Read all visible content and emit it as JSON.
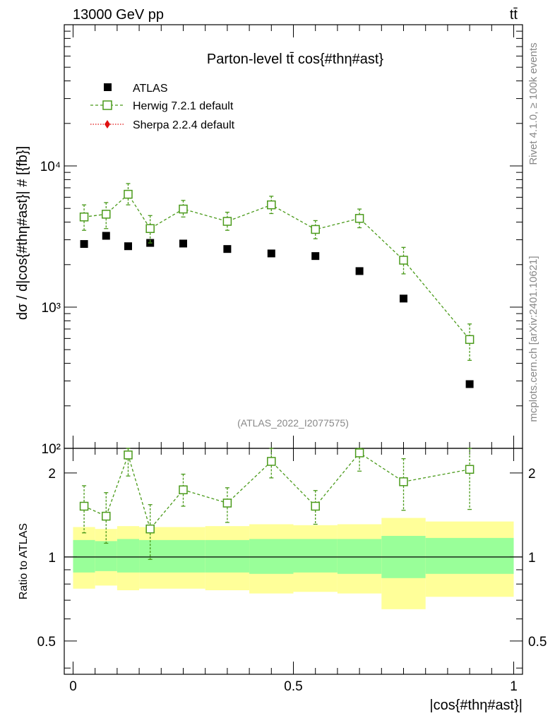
{
  "header": {
    "energy": "13000 GeV pp",
    "process": "tt̄"
  },
  "side": {
    "rivet": "Rivet 4.1.0, ≥ 100k events",
    "mcplots": "mcplots.cern.ch [arXiv:2401.10621]"
  },
  "chart_data": [
    {
      "type": "scatter",
      "title": "Parton-level tt̄ cos{#thη#ast}",
      "ylabel": "dσ / d|cos{#thη#ast}| # [{fb}]",
      "xlabel": "|cos{#thη#ast}|",
      "yscale": "log",
      "ylim": [
        100,
        100000
      ],
      "xlim": [
        -0.02,
        1.02
      ],
      "y_ticks": [
        {
          "value": 100,
          "label": "10²"
        },
        {
          "value": 1000,
          "label": "10³"
        },
        {
          "value": 10000,
          "label": "10⁴"
        }
      ],
      "watermark": "(ATLAS_2022_I2077575)",
      "legend_position": "top-left",
      "series": [
        {
          "name": "ATLAS",
          "color": "#000000",
          "marker": "filled-square",
          "points": [
            {
              "x": 0.025,
              "y": 2800
            },
            {
              "x": 0.075,
              "y": 3200
            },
            {
              "x": 0.125,
              "y": 2700
            },
            {
              "x": 0.175,
              "y": 2850
            },
            {
              "x": 0.25,
              "y": 2820
            },
            {
              "x": 0.35,
              "y": 2580
            },
            {
              "x": 0.45,
              "y": 2400
            },
            {
              "x": 0.55,
              "y": 2300
            },
            {
              "x": 0.65,
              "y": 1800
            },
            {
              "x": 0.75,
              "y": 1150
            },
            {
              "x": 0.9,
              "y": 285
            }
          ]
        },
        {
          "name": "Herwig 7.2.1 default",
          "color": "#4a9a1a",
          "marker": "open-square",
          "points": [
            {
              "x": 0.025,
              "y": 4350,
              "lo": 3500,
              "hi": 5300
            },
            {
              "x": 0.075,
              "y": 4550,
              "lo": 3600,
              "hi": 5500
            },
            {
              "x": 0.125,
              "y": 6300,
              "lo": 5300,
              "hi": 7500
            },
            {
              "x": 0.175,
              "y": 3600,
              "lo": 2850,
              "hi": 4450
            },
            {
              "x": 0.25,
              "y": 4950,
              "lo": 4350,
              "hi": 5700
            },
            {
              "x": 0.35,
              "y": 4050,
              "lo": 3500,
              "hi": 4700
            },
            {
              "x": 0.45,
              "y": 5300,
              "lo": 4600,
              "hi": 6100
            },
            {
              "x": 0.55,
              "y": 3550,
              "lo": 3050,
              "hi": 4100
            },
            {
              "x": 0.65,
              "y": 4250,
              "lo": 3650,
              "hi": 4950
            },
            {
              "x": 0.75,
              "y": 2150,
              "lo": 1720,
              "hi": 2650
            },
            {
              "x": 0.9,
              "y": 590,
              "lo": 420,
              "hi": 760
            }
          ]
        },
        {
          "name": "Sherpa 2.2.4 default",
          "color": "#e01010",
          "marker": "diamond",
          "points": []
        }
      ]
    },
    {
      "type": "scatter",
      "ylabel": "Ratio to ATLAS",
      "xlabel": "|cos{#thη#ast}|",
      "yscale": "log",
      "ylim": [
        0.38,
        2.45
      ],
      "xlim": [
        -0.02,
        1.02
      ],
      "y_ticks": [
        {
          "value": 0.5,
          "label": "0.5"
        },
        {
          "value": 1,
          "label": "1"
        },
        {
          "value": 2,
          "label": "2"
        }
      ],
      "x_ticks": [
        {
          "value": 0,
          "label": "0"
        },
        {
          "value": 0.5,
          "label": "0.5"
        },
        {
          "value": 1,
          "label": "1"
        }
      ],
      "bands": [
        {
          "x0": 0.0,
          "x1": 0.05,
          "stat_lo": 0.88,
          "stat_hi": 1.15,
          "tot_lo": 0.77,
          "tot_hi": 1.28
        },
        {
          "x0": 0.05,
          "x1": 0.1,
          "stat_lo": 0.89,
          "stat_hi": 1.14,
          "tot_lo": 0.79,
          "tot_hi": 1.26
        },
        {
          "x0": 0.1,
          "x1": 0.15,
          "stat_lo": 0.88,
          "stat_hi": 1.16,
          "tot_lo": 0.76,
          "tot_hi": 1.29
        },
        {
          "x0": 0.15,
          "x1": 0.3,
          "stat_lo": 0.88,
          "stat_hi": 1.15,
          "tot_lo": 0.77,
          "tot_hi": 1.28
        },
        {
          "x0": 0.3,
          "x1": 0.4,
          "stat_lo": 0.88,
          "stat_hi": 1.15,
          "tot_lo": 0.76,
          "tot_hi": 1.29
        },
        {
          "x0": 0.4,
          "x1": 0.5,
          "stat_lo": 0.87,
          "stat_hi": 1.16,
          "tot_lo": 0.74,
          "tot_hi": 1.31
        },
        {
          "x0": 0.5,
          "x1": 0.6,
          "stat_lo": 0.88,
          "stat_hi": 1.16,
          "tot_lo": 0.75,
          "tot_hi": 1.3
        },
        {
          "x0": 0.6,
          "x1": 0.7,
          "stat_lo": 0.87,
          "stat_hi": 1.16,
          "tot_lo": 0.74,
          "tot_hi": 1.31
        },
        {
          "x0": 0.7,
          "x1": 0.8,
          "stat_lo": 0.84,
          "stat_hi": 1.19,
          "tot_lo": 0.65,
          "tot_hi": 1.38
        },
        {
          "x0": 0.8,
          "x1": 1.0,
          "stat_lo": 0.87,
          "stat_hi": 1.17,
          "tot_lo": 0.72,
          "tot_hi": 1.34
        }
      ],
      "band_colors": {
        "total": "#ffff99",
        "stat": "#99ff99"
      },
      "series": [
        {
          "name": "Herwig 7.2.1 default",
          "color": "#4a9a1a",
          "marker": "open-square",
          "points": [
            {
              "x": 0.025,
              "y": 1.52,
              "lo": 1.22,
              "hi": 1.8
            },
            {
              "x": 0.075,
              "y": 1.4,
              "lo": 1.12,
              "hi": 1.7
            },
            {
              "x": 0.125,
              "y": 2.32,
              "lo": 1.95,
              "hi": 2.55
            },
            {
              "x": 0.175,
              "y": 1.26,
              "lo": 0.98,
              "hi": 1.54
            },
            {
              "x": 0.25,
              "y": 1.74,
              "lo": 1.52,
              "hi": 1.98
            },
            {
              "x": 0.35,
              "y": 1.56,
              "lo": 1.33,
              "hi": 1.77
            },
            {
              "x": 0.45,
              "y": 2.2,
              "lo": 1.92,
              "hi": 2.55
            },
            {
              "x": 0.55,
              "y": 1.52,
              "lo": 1.31,
              "hi": 1.73
            },
            {
              "x": 0.65,
              "y": 2.36,
              "lo": 2.03,
              "hi": 2.55
            },
            {
              "x": 0.75,
              "y": 1.86,
              "lo": 1.47,
              "hi": 2.25
            },
            {
              "x": 0.9,
              "y": 2.06,
              "lo": 1.48,
              "hi": 2.55
            }
          ]
        }
      ]
    }
  ]
}
